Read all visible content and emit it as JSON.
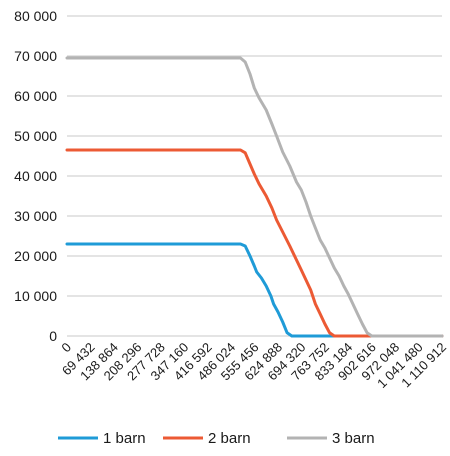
{
  "chart_data": {
    "type": "line",
    "title": "",
    "xlabel": "",
    "ylabel": "",
    "ylim": [
      0,
      80000
    ],
    "y_ticks": [
      0,
      10000,
      20000,
      30000,
      40000,
      50000,
      60000,
      70000,
      80000
    ],
    "y_tick_labels": [
      "0",
      "10 000",
      "20 000",
      "30 000",
      "40 000",
      "50 000",
      "60 000",
      "70 000",
      "80 000"
    ],
    "xlim": [
      0,
      1110912
    ],
    "x_ticks": [
      0,
      69432,
      138864,
      208296,
      277728,
      347160,
      416592,
      486024,
      555456,
      624888,
      694320,
      763752,
      833184,
      902616,
      972048,
      1041480,
      1110912
    ],
    "x_tick_labels": [
      "0",
      "69 432",
      "138 864",
      "208 296",
      "277 728",
      "347 160",
      "416 592",
      "486 024",
      "555 456",
      "624 888",
      "694 320",
      "763 752",
      "833 184",
      "902 616",
      "972 048",
      "1 041 480",
      "1 110 912"
    ],
    "grid": true,
    "legend_position": "bottom",
    "series": [
      {
        "name": "1 barn",
        "color": "#1f9bd7",
        "points": [
          [
            0,
            23000
          ],
          [
            514000,
            23000
          ],
          [
            528000,
            22500
          ],
          [
            542000,
            20000
          ],
          [
            555000,
            17500
          ],
          [
            562000,
            16000
          ],
          [
            576000,
            14500
          ],
          [
            590000,
            12500
          ],
          [
            604000,
            10000
          ],
          [
            612000,
            8000
          ],
          [
            625000,
            6000
          ],
          [
            639000,
            3500
          ],
          [
            652000,
            800
          ],
          [
            666000,
            0
          ],
          [
            1110912,
            0
          ]
        ]
      },
      {
        "name": "2 barn",
        "color": "#ec5a34",
        "points": [
          [
            0,
            46500
          ],
          [
            514000,
            46500
          ],
          [
            528000,
            45800
          ],
          [
            542000,
            43000
          ],
          [
            555000,
            40500
          ],
          [
            569000,
            38000
          ],
          [
            590000,
            35000
          ],
          [
            607000,
            32000
          ],
          [
            621000,
            29000
          ],
          [
            639000,
            26000
          ],
          [
            660000,
            22500
          ],
          [
            680000,
            19000
          ],
          [
            694000,
            16500
          ],
          [
            708000,
            14000
          ],
          [
            722000,
            11500
          ],
          [
            736000,
            8000
          ],
          [
            750000,
            5500
          ],
          [
            764000,
            3000
          ],
          [
            778000,
            800
          ],
          [
            792000,
            0
          ],
          [
            1110912,
            0
          ]
        ]
      },
      {
        "name": "3 barn",
        "color": "#b3b3b3",
        "points": [
          [
            0,
            69500
          ],
          [
            514000,
            69500
          ],
          [
            528000,
            68500
          ],
          [
            542000,
            65500
          ],
          [
            555000,
            62000
          ],
          [
            569000,
            59500
          ],
          [
            590000,
            56500
          ],
          [
            607000,
            53000
          ],
          [
            621000,
            50000
          ],
          [
            639000,
            46000
          ],
          [
            660000,
            42500
          ],
          [
            680000,
            38500
          ],
          [
            694000,
            36500
          ],
          [
            708000,
            33500
          ],
          [
            722000,
            30000
          ],
          [
            736000,
            27000
          ],
          [
            750000,
            24000
          ],
          [
            764000,
            22000
          ],
          [
            778000,
            19500
          ],
          [
            792000,
            17000
          ],
          [
            806000,
            15000
          ],
          [
            820000,
            12500
          ],
          [
            833000,
            10500
          ],
          [
            847000,
            8000
          ],
          [
            861000,
            5500
          ],
          [
            875000,
            3000
          ],
          [
            889000,
            800
          ],
          [
            903000,
            0
          ],
          [
            1110912,
            0
          ]
        ]
      }
    ]
  }
}
